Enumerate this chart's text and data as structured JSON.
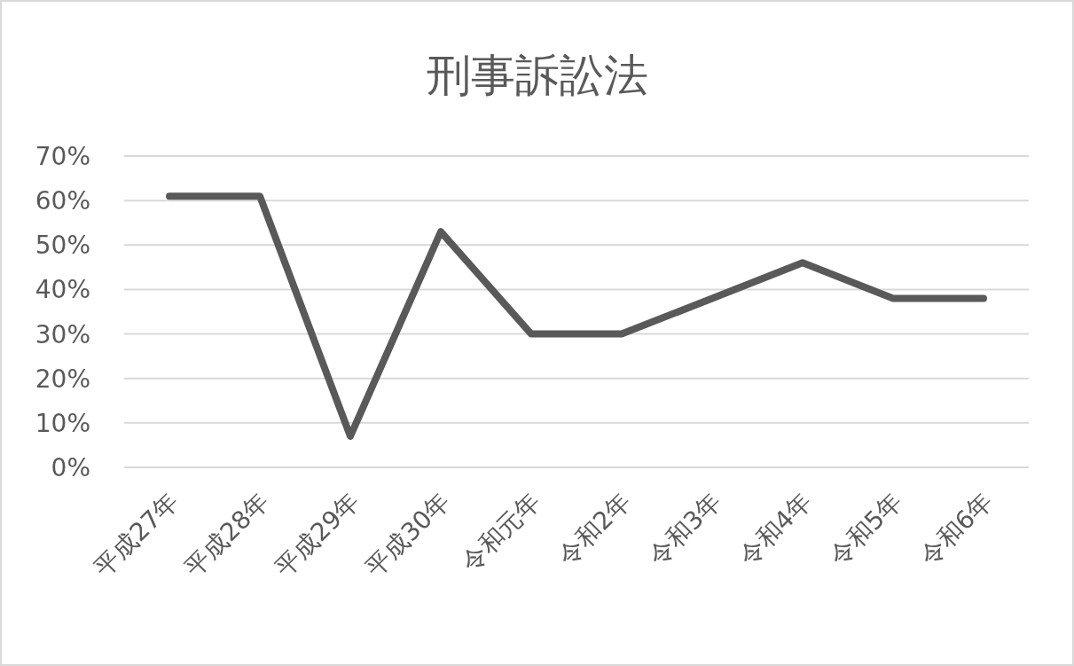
{
  "chart_data": {
    "type": "line",
    "title": "刑事訴訟法",
    "categories": [
      "平成27年",
      "平成28年",
      "平成29年",
      "平成30年",
      "令和元年",
      "令和2年",
      "令和3年",
      "令和4年",
      "令和5年",
      "令和6年"
    ],
    "series": [
      {
        "color": "#595959",
        "values": [
          61,
          61,
          7,
          53,
          30,
          30,
          38,
          46,
          38,
          38
        ]
      }
    ],
    "ylim": [
      0,
      70
    ],
    "yticks": [
      {
        "value": 0,
        "label": "0%"
      },
      {
        "value": 10,
        "label": "10%"
      },
      {
        "value": 20,
        "label": "20%"
      },
      {
        "value": 30,
        "label": "30%"
      },
      {
        "value": 40,
        "label": "40%"
      },
      {
        "value": 50,
        "label": "50%"
      },
      {
        "value": 60,
        "label": "60%"
      },
      {
        "value": 70,
        "label": "70%"
      }
    ],
    "grid": "y",
    "marker": "none",
    "line_style": "solid"
  }
}
